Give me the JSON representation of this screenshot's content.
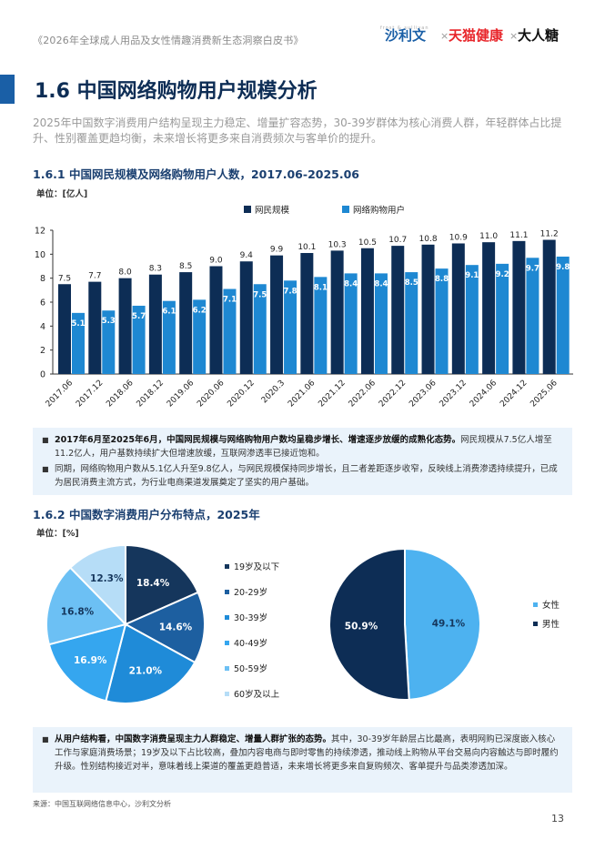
{
  "header": {
    "report_title": "《2026年全球成人用品及女性情趣消费新生态洞察白皮书》",
    "brand_frost_small": "frost & sullivan",
    "brand_frost": "沙利文",
    "brand_tmall": "天猫健康",
    "brand_darentang": "大人糖",
    "separator": "×"
  },
  "section": {
    "number_title": "1.6 中国网络购物用户规模分析",
    "lead": "2025年中国数字消费用户结构呈现主力稳定、增量扩容态势，30-39岁群体为核心消费人群，年轻群体占比提升、性别覆盖更趋均衡，未来增长将更多来自消费频次与客单价的提升。"
  },
  "chart1": {
    "subtitle": "1.6.1 中国网民规模及网络购物用户人数，2017.06-2025.06",
    "unit": "单位：[亿人]"
  },
  "chart2": {
    "subtitle": "1.6.2 中国数字消费用户分布特点，2025年",
    "unit": "单位：[%]"
  },
  "chart_data": [
    {
      "type": "bar",
      "title": "中国网民规模及网络购物用户人数，2017.06-2025.06",
      "ylabel": "亿人",
      "ylim": [
        0,
        12
      ],
      "yticks": [
        0,
        2,
        4,
        6,
        8,
        10,
        12
      ],
      "grid": false,
      "legend_position": "top",
      "categories": [
        "2017.06",
        "2017.12",
        "2018.06",
        "2018.12",
        "2019.06",
        "2020.06",
        "2020.12",
        "2020.3",
        "2021.06",
        "2021.12",
        "2022.06",
        "2022.12",
        "2023.06",
        "2023.12",
        "2024.06",
        "2024.12",
        "2025.06"
      ],
      "series": [
        {
          "name": "网民规模",
          "color": "#0d2d55",
          "values": [
            7.5,
            7.7,
            8.0,
            8.3,
            8.5,
            9.0,
            9.4,
            9.9,
            10.1,
            10.3,
            10.5,
            10.7,
            10.8,
            10.9,
            11.0,
            11.1,
            11.2
          ]
        },
        {
          "name": "网络购物用户",
          "color": "#1e88d2",
          "values": [
            5.1,
            5.3,
            5.7,
            6.1,
            6.2,
            7.1,
            7.5,
            7.8,
            8.1,
            8.4,
            8.4,
            8.5,
            8.8,
            9.1,
            9.2,
            9.7,
            9.8
          ]
        }
      ]
    },
    {
      "type": "pie",
      "title": "年龄分布",
      "slices": [
        {
          "label": "19岁及以下",
          "value": 18.4,
          "color": "#15365c",
          "text": "18.4%"
        },
        {
          "label": "20-29岁",
          "value": 14.6,
          "color": "#1d5fa0",
          "text": "14.6%"
        },
        {
          "label": "30-39岁",
          "value": 21.0,
          "color": "#1f8bd8",
          "text": "21.0%"
        },
        {
          "label": "40-49岁",
          "value": 16.9,
          "color": "#35a6ef",
          "text": "16.9%"
        },
        {
          "label": "50-59岁",
          "value": 16.8,
          "color": "#6cc0f4",
          "text": "16.8%"
        },
        {
          "label": "60岁及以上",
          "value": 12.3,
          "color": "#b6ddf7",
          "text": "12.3%"
        }
      ]
    },
    {
      "type": "pie",
      "title": "性别分布",
      "slices": [
        {
          "label": "女性",
          "value": 49.1,
          "color": "#4db2f0",
          "text": "49.1%"
        },
        {
          "label": "男性",
          "value": 50.9,
          "color": "#0d2d55",
          "text": "50.9%"
        }
      ]
    }
  ],
  "summary1": {
    "p1_bold": "2017年6月至2025年6月，中国网民规模与网络购物用户数均呈稳步增长、增速逐步放缓的成熟化态势。",
    "p1_rest": "网民规模从7.5亿人增至11.2亿人，用户基数持续扩大但增速放缓，互联网渗透率已接近饱和。",
    "p2": "同期，网络购物用户数从5.1亿人升至9.8亿人，与网民规模保持同步增长，且二者差距逐步收窄，反映线上消费渗透持续提升，已成为居民消费主流方式，为行业电商渠道发展奠定了坚实的用户基础。"
  },
  "summary2": {
    "p1_bold": "从用户结构看，中国数字消费呈现主力人群稳定、增量人群扩张的态势。",
    "p1_rest": "其中，30-39岁年龄层占比最高，表明网购已深度嵌入核心工作与家庭消费场景；19岁及以下占比较高，叠加内容电商与即时零售的持续渗透，推动线上购物从平台交易向内容触达与即时履约升级。性别结构接近对半，意味着线上渠道的覆盖更趋普适，未来增长将更多来自复购频次、客单提升与品类渗透加深。"
  },
  "footer": {
    "source": "来源：中国互联网络信息中心，沙利文分析",
    "page_number": "13"
  }
}
